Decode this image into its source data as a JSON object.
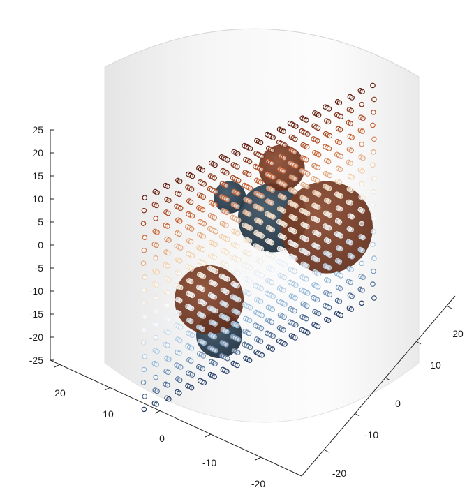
{
  "chart_data": {
    "type": "scatter3d",
    "title": "",
    "xlabel": "",
    "ylabel": "",
    "zlabel": "",
    "grid": false,
    "legend": "none",
    "xlim": [
      -25,
      25
    ],
    "ylim": [
      -25,
      25
    ],
    "zlim": [
      -25,
      25
    ],
    "ticks": {
      "z": [
        "25",
        "20",
        "15",
        "10",
        "5",
        "0",
        "-5",
        "-10",
        "-15",
        "-20",
        "-25"
      ],
      "x": [
        "20",
        "10",
        "0",
        "-10",
        "-20"
      ],
      "y": [
        "20",
        "10",
        "0",
        "-10",
        "-20"
      ]
    },
    "domain": {
      "shape": "cylinder",
      "radius": 25,
      "z_range": [
        -25,
        25
      ],
      "fill": "#d9d9d9",
      "opacity": 0.45
    },
    "inclusions": [
      {
        "center": [
          -6,
          0,
          15
        ],
        "radius": 5,
        "color": "#7a3a22"
      },
      {
        "center": [
          4,
          -4,
          14
        ],
        "radius": 3.5,
        "color": "#1f3545"
      },
      {
        "center": [
          -2,
          2,
          5
        ],
        "radius": 7.5,
        "color": "#1f3545"
      },
      {
        "center": [
          -6,
          14,
          -3
        ],
        "radius": 10,
        "color": "#7a3a22"
      },
      {
        "center": [
          6,
          -8,
          -6
        ],
        "radius": 7.5,
        "color": "#7a3a22"
      },
      {
        "center": [
          10,
          0,
          -15
        ],
        "radius": 5,
        "color": "#1f3545"
      }
    ],
    "sensor_grid": {
      "marker": "open-circle",
      "spacing": 3,
      "z_levels": 17,
      "colormap": [
        "#11264f",
        "#8fb4d6",
        "#eef3f7",
        "#f3d9b8",
        "#c45a2a",
        "#4a0f08"
      ],
      "value_range": [
        -1,
        1
      ]
    }
  }
}
